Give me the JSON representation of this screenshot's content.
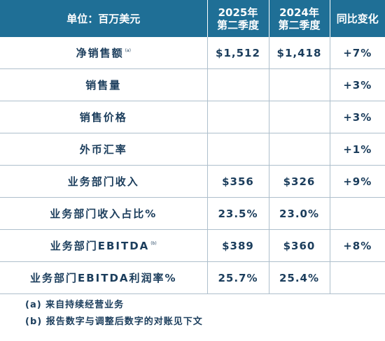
{
  "header": {
    "unit": "单位：百万美元",
    "col1_line1": "2025年",
    "col1_line2": "第二季度",
    "col2_line1": "2024年",
    "col2_line2": "第二季度",
    "col3": "同比变化"
  },
  "rows": [
    {
      "label": "净销售额",
      "footnote": "(a)",
      "q2_2025": "$1,512",
      "q2_2024": "$1,418",
      "yoy": "+7%"
    },
    {
      "label": "销售量",
      "footnote": "",
      "q2_2025": "",
      "q2_2024": "",
      "yoy": "+3%"
    },
    {
      "label": "销售价格",
      "footnote": "",
      "q2_2025": "",
      "q2_2024": "",
      "yoy": "+3%"
    },
    {
      "label": "外币汇率",
      "footnote": "",
      "q2_2025": "",
      "q2_2024": "",
      "yoy": "+1%"
    },
    {
      "label": "业务部门收入",
      "footnote": "",
      "q2_2025": "$356",
      "q2_2024": "$326",
      "yoy": "+9%"
    },
    {
      "label": "业务部门收入占比%",
      "footnote": "",
      "q2_2025": "23.5%",
      "q2_2024": "23.0%",
      "yoy": ""
    },
    {
      "label": "业务部门EBITDA",
      "footnote": "(b)",
      "q2_2025": "$389",
      "q2_2024": "$360",
      "yoy": "+8%"
    },
    {
      "label": "业务部门EBITDA利润率%",
      "footnote": "",
      "q2_2025": "25.7%",
      "q2_2024": "25.4%",
      "yoy": ""
    }
  ],
  "notes": [
    "(a) 来自持续经营业务",
    "(b) 报告数字与调整后数字的对账见下文"
  ]
}
